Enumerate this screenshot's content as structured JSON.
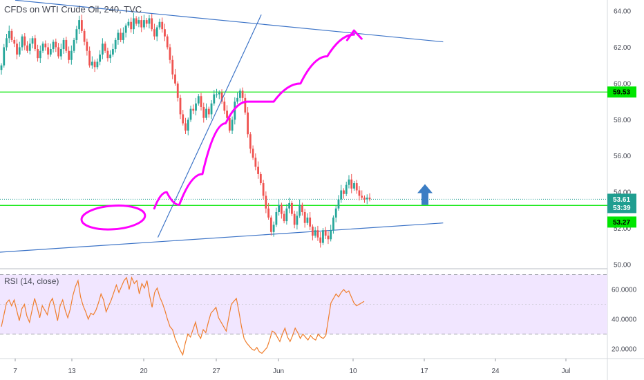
{
  "header": {
    "title": "CFDs on WTI Crude Oil, 240, TVC"
  },
  "rsi_panel": {
    "label": "RSI (14, close)"
  },
  "colors": {
    "up": "#26a69a",
    "down": "#ef5350",
    "level": "#00e600",
    "trend": "#3d74c7",
    "annotation": "#ff00ff",
    "arrow": "#3b7dc4",
    "rsi_line": "#f07e2d",
    "rsi_band": "#f1e6ff",
    "current_tag": "#1f9e90",
    "level_tag": "#00e600"
  },
  "chart_data": [
    {
      "type": "candlestick",
      "title": "CFDs on WTI Crude Oil, 240, TVC",
      "y_ticks": [
        "64.00",
        "62.00",
        "60.00",
        "58.00",
        "56.00",
        "54.00",
        "52.00",
        "50.00"
      ],
      "ylim": [
        49.9,
        64.5
      ],
      "x_ticks": [
        "7",
        "13",
        "20",
        "27",
        "Jun",
        "10",
        "17",
        "24",
        "Jul"
      ],
      "price_tags": [
        {
          "label": "59.53",
          "value": 59.53,
          "kind": "level"
        },
        {
          "label": "53.61",
          "value": 53.61,
          "kind": "current"
        },
        {
          "label": "53:39",
          "value": 53.15,
          "kind": "countdown"
        },
        {
          "label": "53.27",
          "value": 52.35,
          "kind": "level"
        }
      ],
      "horizontal_levels": [
        59.53,
        53.27
      ],
      "current_price": 53.61,
      "trend_lines": [
        {
          "name": "descending-resistance",
          "from": [
            20.8,
            63.8
          ],
          "to": [
            15.0,
            51.5
          ]
        },
        {
          "name": "upper-channel",
          "from": [
            7.0,
            64.6
          ],
          "to": [
            31.0,
            62.3
          ]
        },
        {
          "name": "lower-support",
          "from": [
            -6.0,
            49.9
          ],
          "to": [
            31.0,
            52.3
          ]
        }
      ],
      "closes": [
        61.0,
        62.0,
        62.5,
        62.9,
        62.4,
        62.2,
        61.6,
        62.0,
        62.6,
        62.1,
        61.8,
        62.2,
        62.5,
        61.9,
        61.4,
        61.8,
        62.2,
        62.0,
        61.6,
        61.9,
        62.3,
        62.0,
        61.5,
        61.9,
        62.4,
        61.8,
        61.3,
        61.8,
        62.4,
        63.0,
        63.5,
        62.9,
        62.3,
        61.8,
        61.0,
        61.2,
        60.9,
        61.2,
        61.6,
        62.2,
        61.8,
        61.4,
        61.6,
        61.9,
        62.4,
        62.8,
        62.4,
        62.8,
        63.2,
        63.4,
        63.0,
        63.6,
        63.3,
        63.5,
        63.1,
        63.5,
        63.3,
        63.6,
        63.0,
        62.6,
        63.1,
        63.4,
        63.0,
        62.6,
        62.0,
        61.3,
        60.5,
        60.0,
        59.2,
        58.3,
        57.8,
        57.4,
        58.0,
        58.6,
        58.5,
        58.9,
        59.3,
        58.7,
        58.1,
        58.6,
        58.3,
        58.9,
        59.4,
        59.4,
        59.5,
        59.0,
        58.5,
        58.1,
        57.4,
        58.0,
        59.0,
        59.2,
        59.6,
        59.2,
        58.4,
        57.2,
        56.4,
        55.9,
        55.4,
        55.0,
        54.5,
        53.8,
        53.1,
        52.6,
        51.8,
        52.2,
        52.9,
        53.3,
        52.8,
        52.4,
        53.1,
        53.4,
        52.8,
        52.2,
        52.7,
        53.3,
        52.9,
        52.3,
        52.6,
        52.1,
        51.6,
        51.9,
        51.5,
        51.2,
        51.9,
        51.6,
        51.4,
        51.9,
        52.6,
        53.1,
        53.6,
        54.1,
        53.9,
        54.4,
        54.7,
        54.2,
        54.5,
        54.1,
        53.8,
        53.7,
        53.6,
        53.7,
        53.61
      ],
      "annotations": [
        {
          "kind": "projected-path",
          "points": [
            [
              14.8,
              53.1
            ],
            [
              15.5,
              54.0
            ],
            [
              16.2,
              53.3
            ],
            [
              17.5,
              55.0
            ],
            [
              18.8,
              57.8
            ],
            [
              20.0,
              59.0
            ],
            [
              21.5,
              59.0
            ],
            [
              23.0,
              60.0
            ],
            [
              24.5,
              61.5
            ],
            [
              26.0,
              62.7
            ]
          ]
        },
        {
          "kind": "circle",
          "center": [
            12.5,
            52.6
          ],
          "size": [
            8.0,
            1.2
          ]
        },
        {
          "kind": "up-arrow",
          "at": [
            17.1,
            53.3
          ]
        }
      ]
    },
    {
      "type": "line",
      "title": "RSI (14, close)",
      "y_ticks": [
        "60.0000",
        "40.0000",
        "20.0000"
      ],
      "ylim": [
        16,
        76
      ],
      "band": [
        30,
        70
      ],
      "values": [
        35,
        43,
        51,
        53,
        49,
        53,
        46,
        39,
        47,
        50,
        42,
        38,
        46,
        54,
        48,
        41,
        49,
        46,
        43,
        51,
        54,
        47,
        39,
        49,
        53,
        46,
        41,
        47,
        56,
        62,
        66,
        55,
        49,
        45,
        40,
        44,
        43,
        46,
        51,
        57,
        53,
        45,
        49,
        53,
        58,
        63,
        58,
        62,
        66,
        68,
        60,
        68,
        64,
        66,
        57,
        64,
        61,
        66,
        56,
        48,
        58,
        61,
        55,
        51,
        46,
        40,
        35,
        33,
        27,
        23,
        19,
        16,
        24,
        30,
        28,
        33,
        38,
        30,
        27,
        33,
        31,
        38,
        44,
        46,
        48,
        41,
        38,
        35,
        32,
        41,
        50,
        52,
        54,
        45,
        35,
        27,
        24,
        22,
        20,
        19,
        21,
        18,
        17,
        19,
        21,
        26,
        32,
        31,
        28,
        25,
        30,
        34,
        28,
        25,
        29,
        34,
        31,
        27,
        30,
        28,
        26,
        29,
        27,
        26,
        30,
        28,
        27,
        29,
        40,
        51,
        54,
        57,
        55,
        58,
        60,
        58,
        59,
        55,
        51,
        49,
        50,
        51,
        52
      ]
    }
  ]
}
